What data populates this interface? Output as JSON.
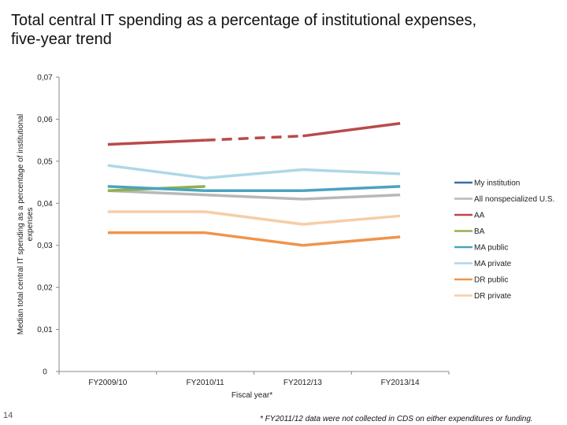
{
  "page_number": "14",
  "footnote": "* FY2011/12 data were not collected in CDS on either expenditures or funding.",
  "chart_data": {
    "type": "line",
    "title_lines": [
      "Total central IT spending as a percentage of institutional expenses,",
      "five-year trend"
    ],
    "xlabel": "Fiscal year*",
    "ylabel_lines": [
      "Median total central IT spending as a percentage of institutional",
      "expenses"
    ],
    "categories": [
      "FY2009/10",
      "FY2010/11",
      "FY2012/13",
      "FY2013/14"
    ],
    "category_labels": [
      "FY2009/10",
      "FY2010/11",
      "FY2012/13",
      "FY2013/14"
    ],
    "ylim": [
      0,
      0.07
    ],
    "yticks": [
      0,
      0.01,
      0.02,
      0.03,
      0.04,
      0.05,
      0.06,
      0.07
    ],
    "ytick_labels": [
      "0",
      "0,01",
      "0,02",
      "0,03",
      "0,04",
      "0,05",
      "0,06",
      "0,07"
    ],
    "grid": false,
    "legend_position": "right",
    "series": [
      {
        "name": "My institution",
        "color": "#3a6ea5",
        "values": [
          null,
          null,
          null,
          null
        ]
      },
      {
        "name": "All nonspecialized U.S.",
        "color": "#b8b8b8",
        "values": [
          0.043,
          0.042,
          0.041,
          0.042
        ]
      },
      {
        "name": "AA",
        "color": "#b94a4a",
        "values": [
          0.054,
          0.055,
          0.056,
          0.059
        ],
        "dashed_segments": [
          1
        ]
      },
      {
        "name": "BA",
        "color": "#92b050",
        "values": [
          0.043,
          0.044,
          null,
          null
        ]
      },
      {
        "name": "MA public",
        "color": "#4aa3c0",
        "values": [
          0.044,
          0.043,
          0.043,
          0.044
        ]
      },
      {
        "name": "MA private",
        "color": "#add8e6",
        "values": [
          0.049,
          0.046,
          0.048,
          0.047
        ]
      },
      {
        "name": "DR public",
        "color": "#f0944a",
        "values": [
          0.033,
          0.033,
          0.03,
          0.032
        ]
      },
      {
        "name": "DR private",
        "color": "#f6cda8",
        "values": [
          0.038,
          0.038,
          0.035,
          0.037
        ]
      }
    ]
  }
}
